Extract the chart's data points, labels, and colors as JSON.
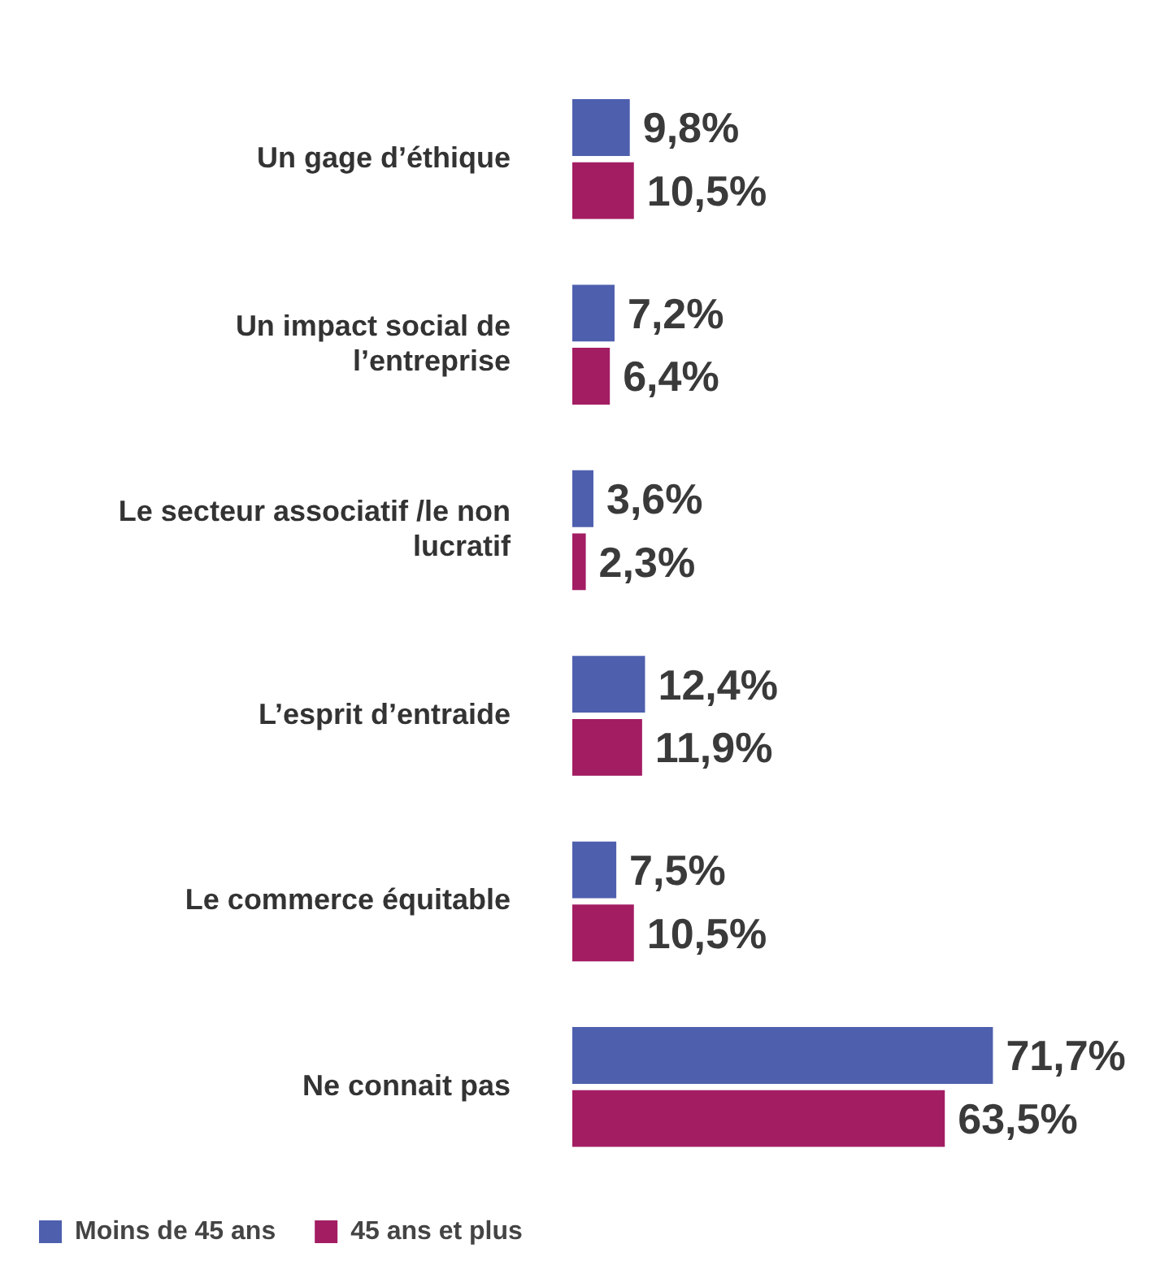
{
  "chart_data": {
    "type": "bar",
    "orientation": "horizontal",
    "categories": [
      "Un gage d’éthique",
      "Un impact social de l’entreprise",
      "Le secteur associatif /le non lucratif",
      "L’esprit d’entraide",
      "Le commerce équitable",
      "Ne connait pas"
    ],
    "series": [
      {
        "name": "Moins de 45 ans",
        "color": "#4e5fae",
        "values": [
          9.8,
          7.2,
          3.6,
          12.4,
          7.5,
          71.7
        ],
        "value_labels": [
          "9,8%",
          "7,2%",
          "3,6%",
          "12,4%",
          "7,5%",
          "71,7%"
        ]
      },
      {
        "name": "45 ans et plus",
        "color": "#a31d63",
        "values": [
          10.5,
          6.4,
          2.3,
          11.9,
          10.5,
          63.5
        ],
        "value_labels": [
          "10,5%",
          "6,4%",
          "2,3%",
          "11,9%",
          "10,5%",
          "63,5%"
        ]
      }
    ],
    "legend": "bottom left"
  }
}
